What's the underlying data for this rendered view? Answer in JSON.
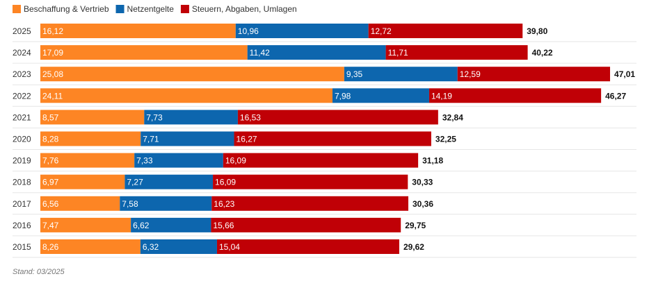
{
  "chart_data": {
    "type": "bar",
    "orientation": "horizontal",
    "stacked": true,
    "categories": [
      "2025",
      "2024",
      "2023",
      "2022",
      "2021",
      "2020",
      "2019",
      "2018",
      "2017",
      "2016",
      "2015"
    ],
    "series": [
      {
        "name": "Beschaffung & Vertrieb",
        "color": "#fd8524",
        "values": [
          16.12,
          17.09,
          25.08,
          24.11,
          8.57,
          8.28,
          7.76,
          6.97,
          6.56,
          7.47,
          8.26
        ],
        "labels": [
          "16,12",
          "17,09",
          "25,08",
          "24,11",
          "8,57",
          "8,28",
          "7,76",
          "6,97",
          "6,56",
          "7,47",
          "8,26"
        ]
      },
      {
        "name": "Netzentgelte",
        "color": "#0d66ae",
        "values": [
          10.96,
          11.42,
          9.35,
          7.98,
          7.73,
          7.71,
          7.33,
          7.27,
          7.58,
          6.62,
          6.32
        ],
        "labels": [
          "10,96",
          "11,42",
          "9,35",
          "7,98",
          "7,73",
          "7,71",
          "7,33",
          "7,27",
          "7,58",
          "6,62",
          "6,32"
        ]
      },
      {
        "name": "Steuern, Abgaben, Umlagen",
        "color": "#c00006",
        "values": [
          12.72,
          11.71,
          12.59,
          14.19,
          16.53,
          16.27,
          16.09,
          16.09,
          16.23,
          15.66,
          15.04
        ],
        "labels": [
          "12,72",
          "11,71",
          "12,59",
          "14,19",
          "16,53",
          "16,27",
          "16,09",
          "16,09",
          "16,23",
          "15,66",
          "15,04"
        ]
      }
    ],
    "totals": [
      "39,80",
      "40,22",
      "47,01",
      "46,27",
      "32,84",
      "32,25",
      "31,18",
      "30,33",
      "30,36",
      "29,75",
      "29,62"
    ],
    "total_values": [
      39.8,
      40.22,
      47.01,
      46.27,
      32.84,
      32.25,
      31.18,
      30.33,
      30.36,
      29.75,
      29.62
    ],
    "xlim": [
      0,
      49.2
    ],
    "legend_position": "top-left",
    "grid": false,
    "title": "",
    "xlabel": "",
    "ylabel": ""
  },
  "footnote": "Stand: 03/2025"
}
